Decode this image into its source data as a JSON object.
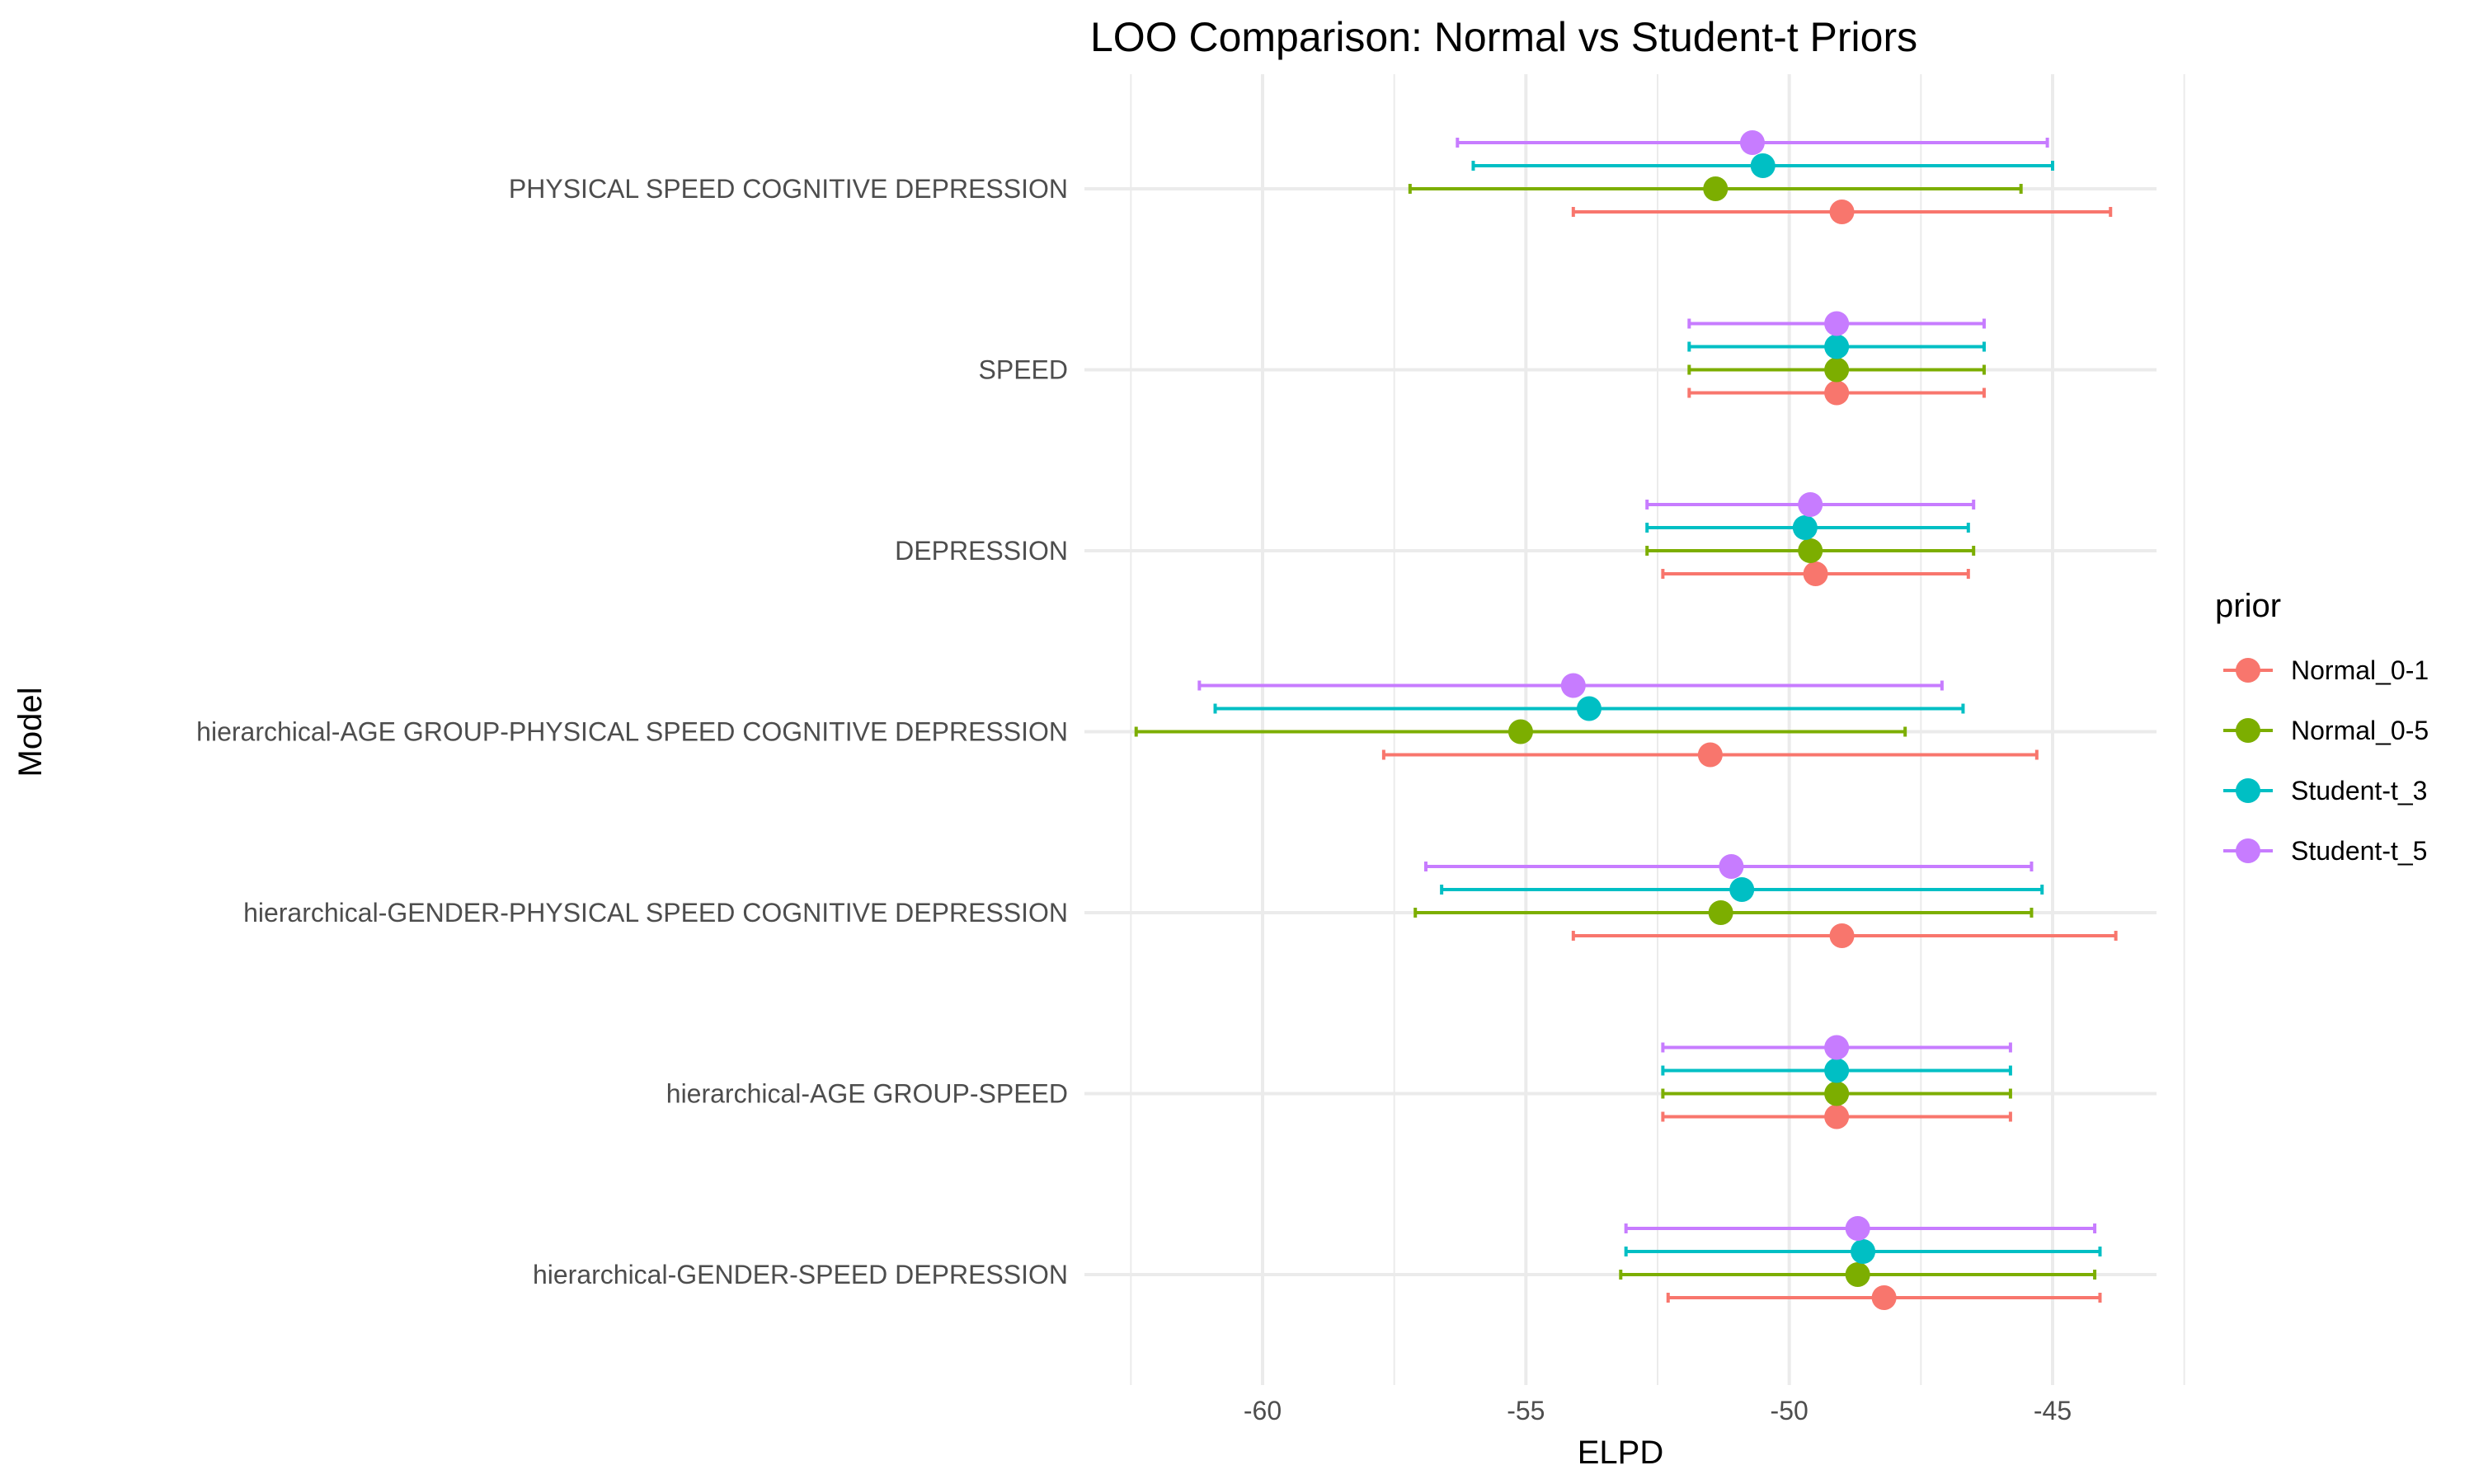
{
  "chart_data": {
    "type": "errorbar-point",
    "title": "LOO Comparison: Normal vs Student-t Priors",
    "xlabel": "ELPD",
    "ylabel": "Model",
    "xlim": [
      -63.2,
      -43.4
    ],
    "xticks": [
      -60,
      -55,
      -50,
      -45
    ],
    "xtick_labels": [
      "-60",
      "-55",
      "-50",
      "-45"
    ],
    "grid": true,
    "legend_title": "prior",
    "legend_position": "right",
    "categories": [
      "PHYSICAL SPEED COGNITIVE DEPRESSION",
      "SPEED",
      "DEPRESSION",
      "hierarchical-AGE GROUP-PHYSICAL SPEED COGNITIVE DEPRESSION",
      "hierarchical-GENDER-PHYSICAL SPEED COGNITIVE DEPRESSION",
      "hierarchical-AGE GROUP-SPEED",
      "hierarchical-GENDER-SPEED DEPRESSION"
    ],
    "series": [
      {
        "name": "Normal_0-1",
        "color": "#F8766D",
        "values": [
          -49.0,
          -49.1,
          -49.5,
          -51.5,
          -49.0,
          -49.1,
          -48.2
        ],
        "lower": [
          -54.1,
          -51.9,
          -52.4,
          -57.7,
          -54.1,
          -52.4,
          -52.3
        ],
        "upper": [
          -43.9,
          -46.3,
          -46.6,
          -45.3,
          -43.8,
          -45.8,
          -44.1
        ]
      },
      {
        "name": "Normal_0-5",
        "color": "#7CAE00",
        "values": [
          -51.4,
          -49.1,
          -49.6,
          -55.1,
          -51.3,
          -49.1,
          -48.7
        ],
        "lower": [
          -57.2,
          -51.9,
          -52.7,
          -62.4,
          -57.1,
          -52.4,
          -53.2
        ],
        "upper": [
          -45.6,
          -46.3,
          -46.5,
          -47.8,
          -45.4,
          -45.8,
          -44.2
        ]
      },
      {
        "name": "Student-t_3",
        "color": "#00BFC4",
        "values": [
          -50.5,
          -49.1,
          -49.7,
          -53.8,
          -50.9,
          -49.1,
          -48.6
        ],
        "lower": [
          -56.0,
          -51.9,
          -52.7,
          -60.9,
          -56.6,
          -52.4,
          -53.1
        ],
        "upper": [
          -45.0,
          -46.3,
          -46.6,
          -46.7,
          -45.2,
          -45.8,
          -44.1
        ]
      },
      {
        "name": "Student-t_5",
        "color": "#C77CFF",
        "values": [
          -50.7,
          -49.1,
          -49.6,
          -54.1,
          -51.1,
          -49.1,
          -48.7
        ],
        "lower": [
          -56.3,
          -51.9,
          -52.7,
          -61.2,
          -56.9,
          -52.4,
          -53.1
        ],
        "upper": [
          -45.1,
          -46.3,
          -46.5,
          -47.1,
          -45.4,
          -45.8,
          -44.2
        ]
      }
    ]
  }
}
